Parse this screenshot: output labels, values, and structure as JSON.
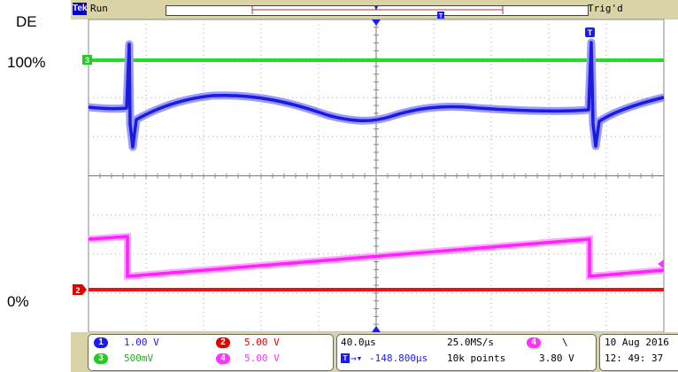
{
  "labels": {
    "de": "DE",
    "percent_top": "100%",
    "percent_bottom": "0%"
  },
  "topbar": {
    "logo": "Tek",
    "status": "Run",
    "trigger_status": "Trig'd"
  },
  "markers": {
    "trigger_marker": "T",
    "ch3_marker": "3",
    "ch2_marker": "2",
    "ch4_marker": "4"
  },
  "channels": [
    {
      "id": "1",
      "scale": "1.00 V",
      "color": "#1a1aff"
    },
    {
      "id": "2",
      "scale": "5.00 V",
      "color": "#e00000"
    },
    {
      "id": "3",
      "scale": "500mV",
      "color": "#22cc22"
    },
    {
      "id": "4",
      "scale": "5.00 V",
      "color": "#ff33ff"
    }
  ],
  "timebase": {
    "scale": "40.0µs",
    "sample_rate": "25.0MS/s",
    "position": "-148.800µs",
    "record_length": "10k points"
  },
  "trigger": {
    "source": "4",
    "slope": "\\",
    "level": "3.80 V"
  },
  "datetime": {
    "date": "10 Aug  2016",
    "time": "12: 49: 37"
  },
  "colors": {
    "screen": "#ffffff",
    "bezel": "#d9d3a6",
    "grid": "#888888",
    "ch1": "#1a1aff",
    "ch2": "#e00000",
    "ch3": "#22cc22",
    "ch4": "#ff33ff"
  }
}
